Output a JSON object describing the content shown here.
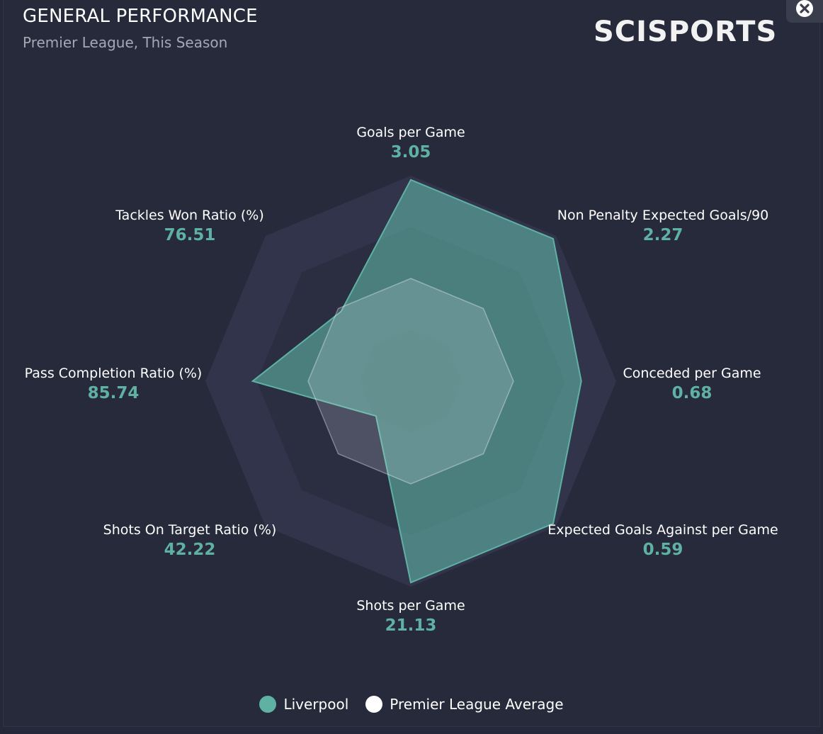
{
  "header": {
    "title": "GENERAL PERFORMANCE",
    "subtitle": "Premier League, This Season",
    "logo_text": "SCISPORTS"
  },
  "close_icon": "close-icon",
  "colors": {
    "liverpool": "#5fb1a4",
    "league_average": "#ffffff",
    "background": "#262a3a",
    "ring": "#31344a"
  },
  "chart_data": {
    "type": "radar",
    "title": "GENERAL PERFORMANCE",
    "subtitle": "Premier League, This Season",
    "rings": 4,
    "grid": true,
    "legend_position": "bottom-center",
    "axes": [
      {
        "label": "Goals per Game",
        "value_text": "3.05"
      },
      {
        "label": "Non Penalty Expected Goals/90",
        "value_text": "2.27"
      },
      {
        "label": "Conceded per Game",
        "value_text": "0.68"
      },
      {
        "label": "Expected Goals Against per Game",
        "value_text": "0.59"
      },
      {
        "label": "Shots per Game",
        "value_text": "21.13"
      },
      {
        "label": "Shots On Target Ratio (%)",
        "value_text": "42.22"
      },
      {
        "label": "Pass Completion Ratio (%)",
        "value_text": "85.74"
      },
      {
        "label": "Tackles Won Ratio (%)",
        "value_text": "76.51"
      }
    ],
    "series": [
      {
        "name": "Liverpool",
        "color": "#5fb1a4",
        "values": [
          0.98,
          0.98,
          0.83,
          0.98,
          0.98,
          0.24,
          0.77,
          0.48
        ]
      },
      {
        "name": "Premier League Average",
        "color": "#ffffff",
        "values": [
          0.5,
          0.5,
          0.5,
          0.5,
          0.5,
          0.5,
          0.5,
          0.5
        ]
      }
    ]
  }
}
